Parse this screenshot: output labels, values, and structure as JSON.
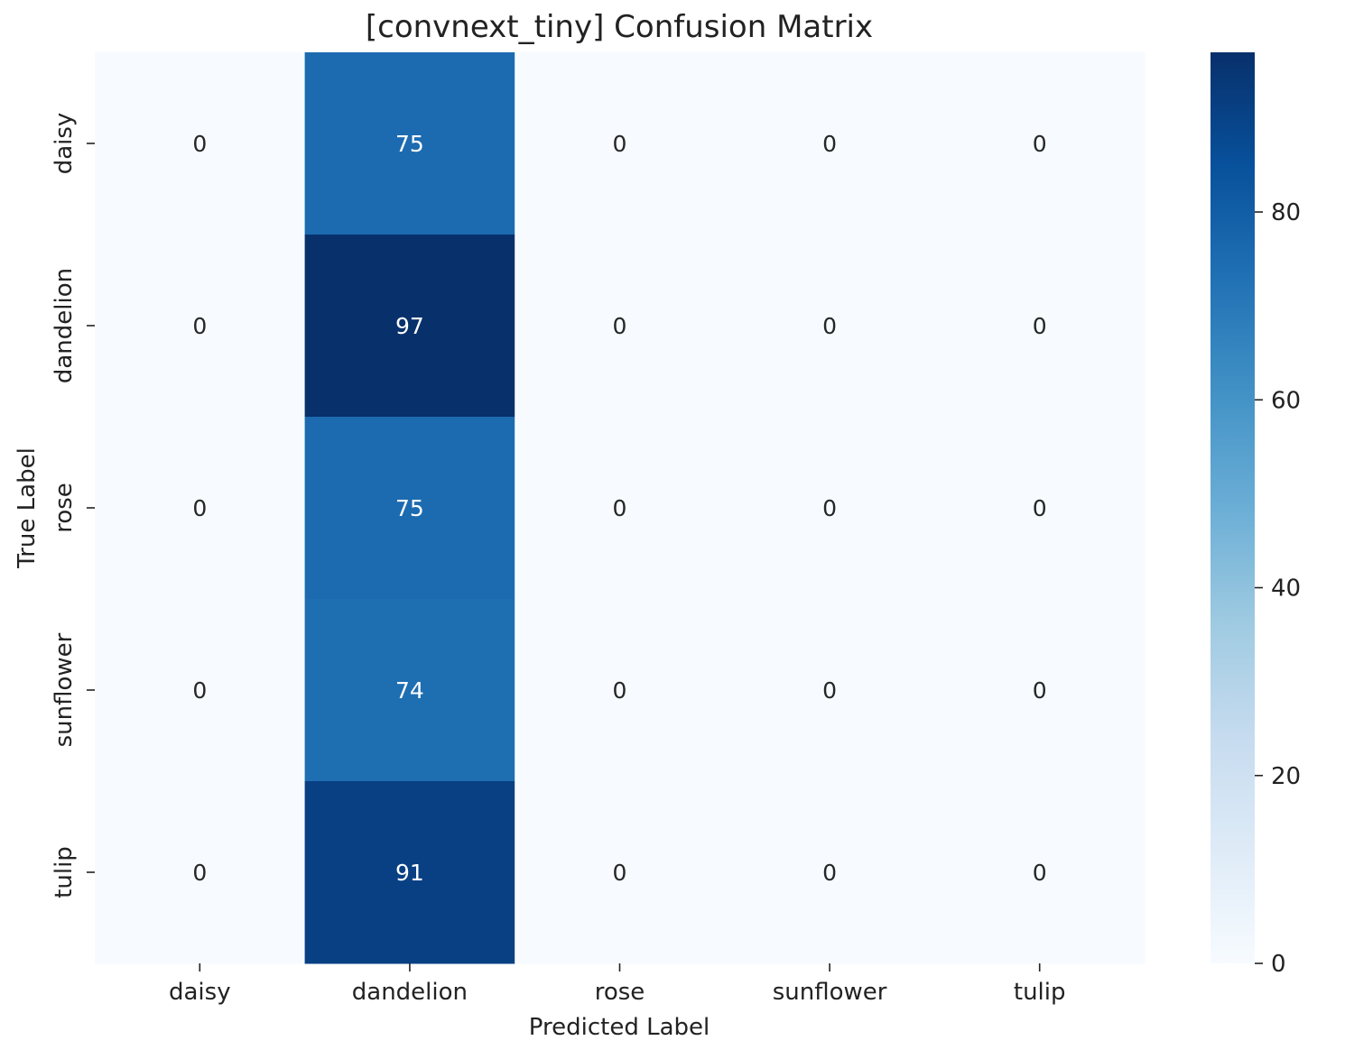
{
  "chart_data": {
    "type": "heatmap",
    "title": "[convnext_tiny] Confusion Matrix",
    "xlabel": "Predicted Label",
    "ylabel": "True Label",
    "x_categories": [
      "daisy",
      "dandelion",
      "rose",
      "sunflower",
      "tulip"
    ],
    "y_categories": [
      "daisy",
      "dandelion",
      "rose",
      "sunflower",
      "tulip"
    ],
    "values": [
      [
        0,
        75,
        0,
        0,
        0
      ],
      [
        0,
        97,
        0,
        0,
        0
      ],
      [
        0,
        75,
        0,
        0,
        0
      ],
      [
        0,
        74,
        0,
        0,
        0
      ],
      [
        0,
        91,
        0,
        0,
        0
      ]
    ],
    "colormap": "Blues",
    "colorbar": {
      "range": [
        0,
        97
      ],
      "ticks": [
        0,
        20,
        40,
        60,
        80
      ]
    },
    "grid": false,
    "legend": "colorbar-right"
  }
}
